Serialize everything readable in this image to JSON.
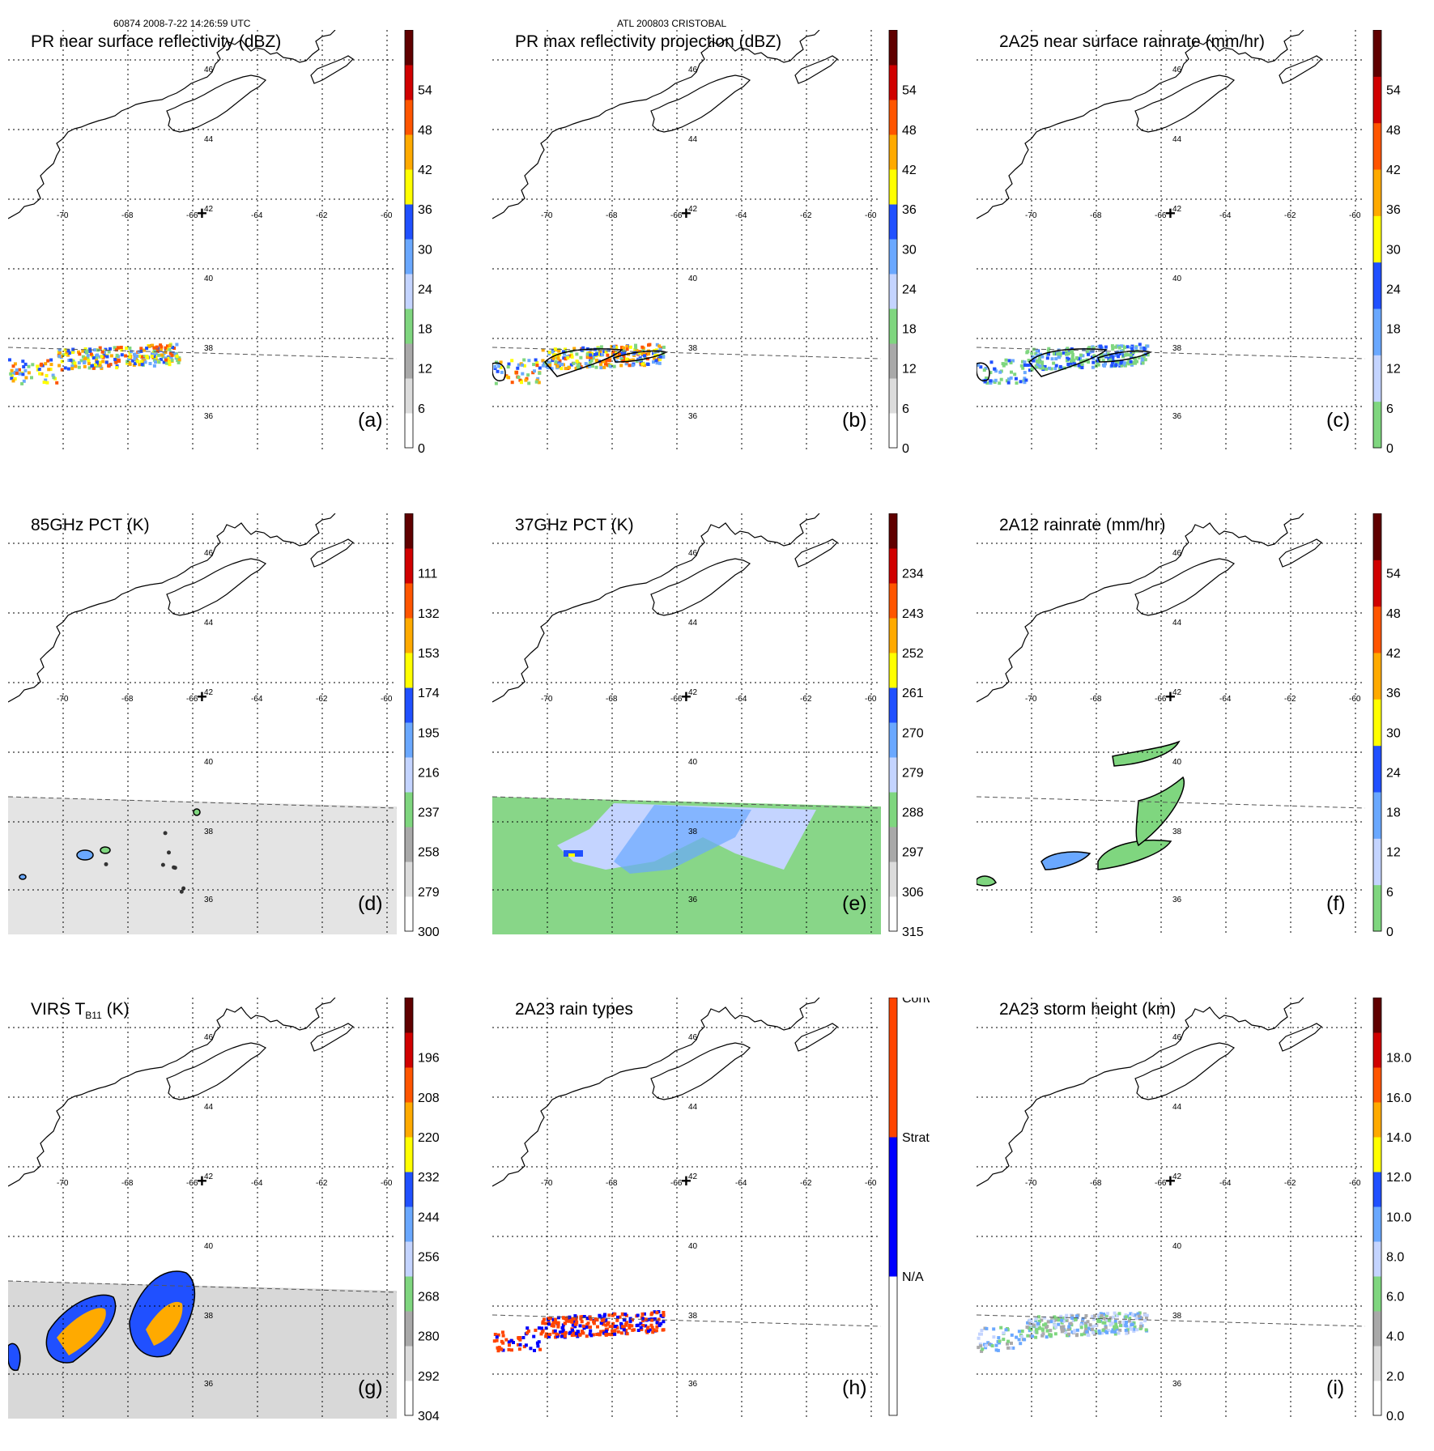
{
  "header": {
    "left": "60874 2008-7-22 14:26:59 UTC",
    "center": "ATL 200803 CRISTOBAL"
  },
  "map": {
    "lon_labels": [
      "-70",
      "-68",
      "-66",
      "-64",
      "-62",
      "-60"
    ],
    "lat_labels": [
      "46",
      "44",
      "42",
      "40",
      "38",
      "36"
    ],
    "center_marker": "+"
  },
  "chart_data": [
    {
      "id": "a",
      "type": "heatmap",
      "title": "PR near surface reflectivity (dBZ)",
      "panel_label": "(a)",
      "colorbar_ticks": [
        "0",
        "6",
        "12",
        "18",
        "24",
        "30",
        "36",
        "42",
        "48",
        "54"
      ],
      "colorbar_colors": [
        "#ffffff",
        "#dcdcdc",
        "#a9a9a9",
        "#7fd67f",
        "#c4d4ff",
        "#6aa8ff",
        "#2050ff",
        "#ffff00",
        "#ffaa00",
        "#ff5500",
        "#d00000",
        "#600000"
      ],
      "swath": "narrow",
      "feature": "pr"
    },
    {
      "id": "b",
      "type": "heatmap",
      "title": "PR max reflectivity projection (dBZ)",
      "panel_label": "(b)",
      "colorbar_ticks": [
        "0",
        "6",
        "12",
        "18",
        "24",
        "30",
        "36",
        "42",
        "48",
        "54"
      ],
      "colorbar_colors": [
        "#ffffff",
        "#dcdcdc",
        "#a9a9a9",
        "#7fd67f",
        "#c4d4ff",
        "#6aa8ff",
        "#2050ff",
        "#ffff00",
        "#ffaa00",
        "#ff5500",
        "#d00000",
        "#600000"
      ],
      "swath": "narrow",
      "feature": "pr-contour"
    },
    {
      "id": "c",
      "type": "heatmap",
      "title": "2A25 near surface rainrate (mm/hr)",
      "panel_label": "(c)",
      "colorbar_ticks": [
        "0",
        "6",
        "12",
        "18",
        "24",
        "30",
        "36",
        "42",
        "48",
        "54"
      ],
      "colorbar_colors": [
        "#7fd67f",
        "#c4d4ff",
        "#6aa8ff",
        "#2050ff",
        "#ffff00",
        "#ffaa00",
        "#ff5500",
        "#d00000",
        "#600000"
      ],
      "swath": "narrow",
      "feature": "rain-green"
    },
    {
      "id": "d",
      "type": "heatmap",
      "title": "85GHz PCT (K)",
      "panel_label": "(d)",
      "colorbar_ticks": [
        "300",
        "279",
        "258",
        "237",
        "216",
        "195",
        "174",
        "153",
        "132",
        "111"
      ],
      "colorbar_colors": [
        "#ffffff",
        "#dcdcdc",
        "#a9a9a9",
        "#7fd67f",
        "#c4d4ff",
        "#6aa8ff",
        "#2050ff",
        "#ffff00",
        "#ffaa00",
        "#ff5500",
        "#d00000",
        "#600000"
      ],
      "swath": "wide",
      "feature": "gray"
    },
    {
      "id": "e",
      "type": "heatmap",
      "title": "37GHz PCT (K)",
      "panel_label": "(e)",
      "colorbar_ticks": [
        "315",
        "306",
        "297",
        "288",
        "279",
        "270",
        "261",
        "252",
        "243",
        "234"
      ],
      "colorbar_colors": [
        "#ffffff",
        "#dcdcdc",
        "#a9a9a9",
        "#7fd67f",
        "#c4d4ff",
        "#6aa8ff",
        "#2050ff",
        "#ffff00",
        "#ffaa00",
        "#ff5500",
        "#d00000",
        "#600000"
      ],
      "swath": "wide",
      "feature": "green-field"
    },
    {
      "id": "f",
      "type": "heatmap",
      "title": "2A12 rainrate (mm/hr)",
      "panel_label": "(f)",
      "colorbar_ticks": [
        "0",
        "6",
        "12",
        "18",
        "24",
        "30",
        "36",
        "42",
        "48",
        "54"
      ],
      "colorbar_colors": [
        "#7fd67f",
        "#c4d4ff",
        "#6aa8ff",
        "#2050ff",
        "#ffff00",
        "#ffaa00",
        "#ff5500",
        "#d00000",
        "#600000"
      ],
      "swath": "wide",
      "feature": "rain-blobs"
    },
    {
      "id": "g",
      "type": "heatmap",
      "title": "VIRS T",
      "title_sub": "B11",
      "title_suffix": " (K)",
      "panel_label": "(g)",
      "colorbar_ticks": [
        "304",
        "292",
        "280",
        "268",
        "256",
        "244",
        "232",
        "220",
        "208",
        "196"
      ],
      "colorbar_colors": [
        "#ffffff",
        "#dcdcdc",
        "#a9a9a9",
        "#7fd67f",
        "#c4d4ff",
        "#6aa8ff",
        "#2050ff",
        "#ffff00",
        "#ffaa00",
        "#ff5500",
        "#d00000",
        "#600000"
      ],
      "swath": "wide",
      "feature": "virs"
    },
    {
      "id": "h",
      "type": "heatmap",
      "title": "2A23 rain types",
      "panel_label": "(h)",
      "colorbar_ticks": [
        "N/A",
        "Strat",
        "Conv"
      ],
      "colorbar_colors": [
        "#ffffff",
        "#0000ff",
        "#ff4400"
      ],
      "swath": "narrow",
      "feature": "raintype"
    },
    {
      "id": "i",
      "type": "heatmap",
      "title": "2A23 storm height (km)",
      "panel_label": "(i)",
      "colorbar_ticks": [
        "0.0",
        "2.0",
        "4.0",
        "6.0",
        "8.0",
        "10.0",
        "12.0",
        "14.0",
        "16.0",
        "18.0"
      ],
      "colorbar_colors": [
        "#ffffff",
        "#dcdcdc",
        "#a9a9a9",
        "#7fd67f",
        "#c4d4ff",
        "#6aa8ff",
        "#2050ff",
        "#ffff00",
        "#ffaa00",
        "#ff5500",
        "#d00000",
        "#600000"
      ],
      "swath": "narrow",
      "feature": "height"
    }
  ]
}
